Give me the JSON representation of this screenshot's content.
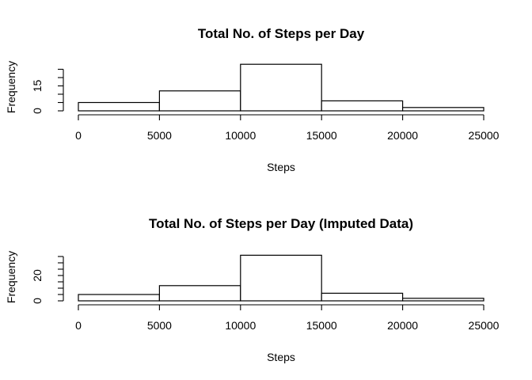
{
  "chart_data": [
    {
      "type": "bar",
      "title": "Total No. of Steps per Day",
      "xlabel": "Steps",
      "ylabel": "Frequency",
      "bins": [
        0,
        5000,
        10000,
        15000,
        20000,
        25000
      ],
      "categories": [
        "0-5000",
        "5000-10000",
        "10000-15000",
        "15000-20000",
        "20000-25000"
      ],
      "values": [
        5,
        12,
        28,
        6,
        2
      ],
      "x_ticks": [
        0,
        5000,
        10000,
        15000,
        20000,
        25000
      ],
      "y_ticks": [
        0,
        15
      ],
      "y_minor_ticks": [
        0,
        5,
        10,
        15,
        20,
        25
      ],
      "ylim": [
        0,
        28
      ],
      "grid": false
    },
    {
      "type": "bar",
      "title": "Total No. of Steps per Day (Imputed Data)",
      "xlabel": "Steps",
      "ylabel": "Frequency",
      "bins": [
        0,
        5000,
        10000,
        15000,
        20000,
        25000
      ],
      "categories": [
        "0-5000",
        "5000-10000",
        "10000-15000",
        "15000-20000",
        "20000-25000"
      ],
      "values": [
        5,
        12,
        36,
        6,
        2
      ],
      "x_ticks": [
        0,
        5000,
        10000,
        15000,
        20000,
        25000
      ],
      "y_ticks": [
        0,
        20
      ],
      "y_minor_ticks": [
        0,
        5,
        10,
        15,
        20,
        25,
        30,
        35
      ],
      "ylim": [
        0,
        36
      ],
      "grid": false
    }
  ]
}
